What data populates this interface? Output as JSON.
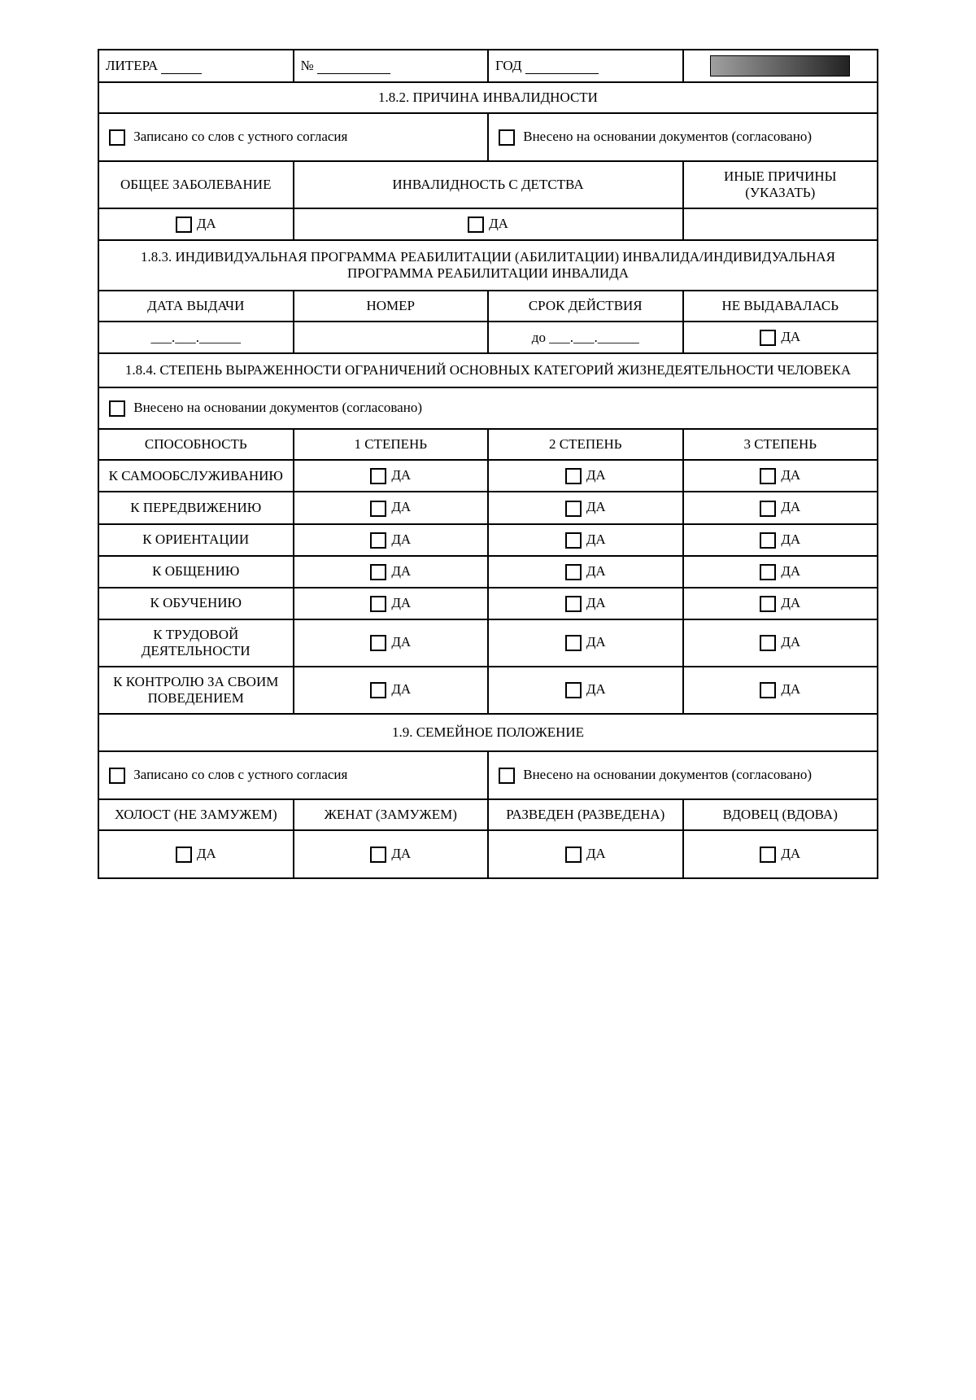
{
  "header": {
    "litera_label": "ЛИТЕРА",
    "number_label": "№",
    "year_label": "ГОД"
  },
  "section_182": {
    "title": "1.8.2. ПРИЧИНА ИНВАЛИДНОСТИ",
    "verbal_consent": "Записано со слов с устного согласия",
    "on_documents": "Внесено на основании документов (согласовано)",
    "col1": "ОБЩЕЕ ЗАБОЛЕВАНИЕ",
    "col2": "ИНВАЛИДНОСТЬ С ДЕТСТВА",
    "col3": "ИНЫЕ ПРИЧИНЫ (УКАЗАТЬ)",
    "yes": "ДА"
  },
  "section_183": {
    "title": "1.8.3. ИНДИВИДУАЛЬНАЯ ПРОГРАММА РЕАБИЛИТАЦИИ (АБИЛИТАЦИИ) ИНВАЛИДА/ИНДИВИДУАЛЬНАЯ ПРОГРАММА РЕАБИЛИТАЦИИ ИНВАЛИДА",
    "col1": "ДАТА ВЫДАЧИ",
    "col2": "НОМЕР",
    "col3": "СРОК ДЕЙСТВИЯ",
    "col4": "НЕ ВЫДАВАЛАСЬ",
    "date_placeholder": "___.___.______",
    "until_prefix": "до",
    "yes": "ДА"
  },
  "section_184": {
    "title": "1.8.4. СТЕПЕНЬ ВЫРАЖЕННОСТИ ОГРАНИЧЕНИЙ ОСНОВНЫХ КАТЕГОРИЙ ЖИЗНЕДЕЯТЕЛЬНОСТИ ЧЕЛОВЕКА",
    "on_documents": "Внесено на основании документов (согласовано)",
    "ability_header": "СПОСОБНОСТЬ",
    "degree1": "1 СТЕПЕНЬ",
    "degree2": "2 СТЕПЕНЬ",
    "degree3": "3 СТЕПЕНЬ",
    "rows": [
      "К САМООБСЛУЖИВАНИЮ",
      "К ПЕРЕДВИЖЕНИЮ",
      "К ОРИЕНТАЦИИ",
      "К ОБЩЕНИЮ",
      "К ОБУЧЕНИЮ",
      "К ТРУДОВОЙ ДЕЯТЕЛЬНОСТИ",
      "К КОНТРОЛЮ ЗА СВОИМ ПОВЕДЕНИЕМ"
    ],
    "yes": "ДА"
  },
  "section_19": {
    "title": "1.9. СЕМЕЙНОЕ ПОЛОЖЕНИЕ",
    "verbal_consent": "Записано со слов с устного согласия",
    "on_documents": "Внесено на основании документов (согласовано)",
    "col1": "ХОЛОСТ (НЕ ЗАМУЖЕМ)",
    "col2": "ЖЕНАТ (ЗАМУЖЕМ)",
    "col3": "РАЗВЕДЕН (РАЗВЕДЕНА)",
    "col4": "ВДОВЕЦ (ВДОВА)",
    "yes": "ДА"
  }
}
